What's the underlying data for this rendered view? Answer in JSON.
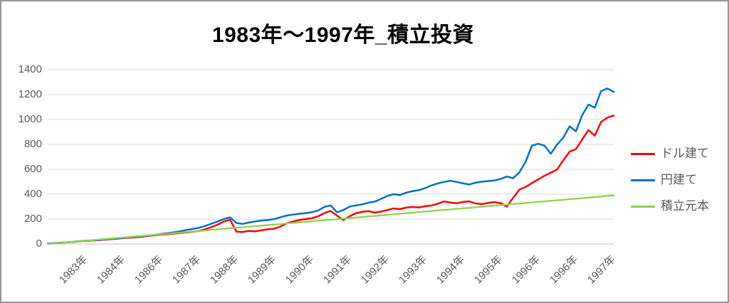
{
  "title": "1983年〜1997年_積立投資",
  "colors": {
    "title_text": "#000000",
    "axis_text": "#595959",
    "gridline": "#d9d9d9",
    "axis_line": "#bfbfbf",
    "border": "#969696"
  },
  "chart_data": {
    "type": "line",
    "title": "1983年〜1997年_積立投資",
    "xlabel": "",
    "ylabel": "",
    "ylim": [
      0,
      1400
    ],
    "y_ticks": [
      0,
      200,
      400,
      600,
      800,
      1000,
      1200,
      1400
    ],
    "grid": true,
    "legend_position": "right",
    "x_tick_labels": [
      "1983年",
      "1984年",
      "1986年",
      "1987年",
      "1988年",
      "1989年",
      "1990年",
      "1991年",
      "1992年",
      "1993年",
      "1994年",
      "1995年",
      "1996年",
      "1996年",
      "1997年"
    ],
    "x_range_note": "monthly accumulation from 1983 to late 1997, values sampled at 91 evenly spaced points",
    "series": [
      {
        "name": "ドル建て",
        "color": "#ff0000",
        "values": [
          2,
          5,
          9,
          13,
          16,
          21,
          25,
          27,
          30,
          34,
          38,
          42,
          47,
          50,
          54,
          59,
          64,
          70,
          75,
          78,
          83,
          88,
          92,
          99,
          104,
          118,
          135,
          155,
          180,
          195,
          100,
          96,
          105,
          101,
          110,
          118,
          122,
          140,
          165,
          180,
          192,
          200,
          206,
          222,
          248,
          265,
          228,
          192,
          222,
          246,
          258,
          264,
          252,
          260,
          272,
          285,
          280,
          292,
          298,
          294,
          303,
          309,
          322,
          341,
          334,
          327,
          337,
          342,
          326,
          320,
          330,
          336,
          328,
          300,
          370,
          436,
          458,
          490,
          518,
          548,
          572,
          598,
          672,
          742,
          762,
          840,
          915,
          870,
          980,
          1015,
          1032
        ]
      },
      {
        "name": "円建て",
        "color": "#0070c0",
        "values": [
          2,
          6,
          10,
          14,
          17,
          22,
          26,
          29,
          32,
          36,
          40,
          44,
          49,
          53,
          58,
          62,
          67,
          73,
          80,
          86,
          93,
          101,
          112,
          120,
          130,
          144,
          162,
          180,
          200,
          214,
          168,
          161,
          172,
          181,
          188,
          192,
          200,
          214,
          228,
          236,
          242,
          248,
          255,
          268,
          298,
          310,
          255,
          272,
          300,
          310,
          318,
          332,
          340,
          362,
          385,
          400,
          393,
          412,
          424,
          432,
          448,
          470,
          486,
          498,
          508,
          498,
          488,
          478,
          492,
          500,
          505,
          510,
          522,
          542,
          528,
          575,
          660,
          790,
          805,
          790,
          725,
          798,
          855,
          945,
          905,
          1035,
          1120,
          1095,
          1228,
          1250,
          1222
        ]
      },
      {
        "name": "積立元本",
        "color": "#92d050",
        "values": [
          0,
          4,
          9,
          13,
          17,
          22,
          26,
          30,
          35,
          39,
          43,
          48,
          52,
          56,
          61,
          65,
          69,
          74,
          78,
          82,
          87,
          91,
          95,
          100,
          104,
          108,
          113,
          117,
          121,
          126,
          130,
          134,
          139,
          143,
          147,
          152,
          156,
          160,
          165,
          169,
          173,
          178,
          182,
          186,
          191,
          195,
          199,
          204,
          208,
          212,
          217,
          221,
          225,
          230,
          234,
          238,
          243,
          247,
          251,
          256,
          260,
          264,
          269,
          273,
          277,
          282,
          286,
          290,
          295,
          299,
          303,
          308,
          312,
          316,
          321,
          325,
          329,
          334,
          338,
          342,
          347,
          351,
          355,
          360,
          364,
          368,
          373,
          377,
          381,
          386,
          390
        ]
      }
    ]
  }
}
